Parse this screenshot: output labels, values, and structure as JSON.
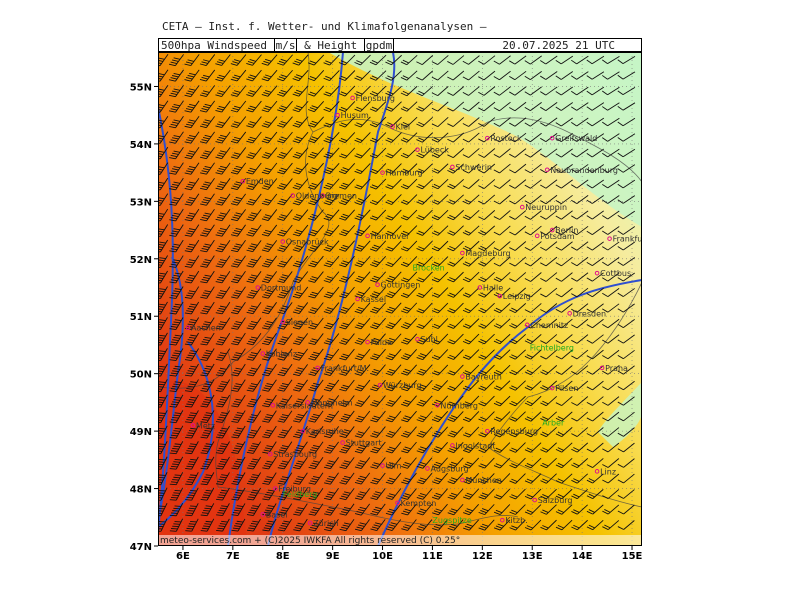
{
  "header": {
    "source": "CETA — Inst. f. Wetter- und Klimafolgenanalysen —",
    "parameter_prefix": "500hpa Windspeed",
    "unit_speed": "m/s",
    "connector": "& Height",
    "unit_height": "gpdm",
    "datetime": "20.07.2025 21 UTC"
  },
  "footer": {
    "copyright": "meteo-services.com + (C)2025 IWKFA All rights reserved (C) 0.25°"
  },
  "axes": {
    "lat_labels": [
      "55N",
      "54N",
      "53N",
      "52N",
      "51N",
      "50N",
      "49N",
      "48N",
      "47N"
    ],
    "lon_labels": [
      "6E",
      "7E",
      "8E",
      "9E",
      "10E",
      "11E",
      "12E",
      "13E",
      "14E",
      "15E"
    ],
    "lat_range": [
      47,
      55.6
    ],
    "lon_range": [
      5.5,
      15.2
    ]
  },
  "colors": {
    "strong": "#e03a12",
    "orange": "#f07a10",
    "gold": "#f5b400",
    "yellow": "#f8d84a",
    "pale": "#f6ec9e",
    "green": "#c6f5c6",
    "contour": "#2f4fd0",
    "city_dot": "#e0108a"
  },
  "cities": [
    {
      "name": "Flensburg",
      "lat": 54.8,
      "lon": 9.4
    },
    {
      "name": "Husum",
      "lat": 54.5,
      "lon": 9.1
    },
    {
      "name": "Kiel",
      "lat": 54.3,
      "lon": 10.2
    },
    {
      "name": "Rostock",
      "lat": 54.1,
      "lon": 12.1
    },
    {
      "name": "Greifswald",
      "lat": 54.1,
      "lon": 13.4
    },
    {
      "name": "Lübeck",
      "lat": 53.9,
      "lon": 10.7
    },
    {
      "name": "Schwerin",
      "lat": 53.6,
      "lon": 11.4
    },
    {
      "name": "Hamburg",
      "lat": 53.5,
      "lon": 10.0
    },
    {
      "name": "Neubrandenburg",
      "lat": 53.55,
      "lon": 13.3
    },
    {
      "name": "Emden",
      "lat": 53.35,
      "lon": 7.2
    },
    {
      "name": "Bremen",
      "lat": 53.1,
      "lon": 8.8
    },
    {
      "name": "Oldenburg",
      "lat": 53.1,
      "lon": 8.2
    },
    {
      "name": "Neuruppin",
      "lat": 52.9,
      "lon": 12.8
    },
    {
      "name": "Berlin",
      "lat": 52.5,
      "lon": 13.4
    },
    {
      "name": "Potsdam",
      "lat": 52.4,
      "lon": 13.1
    },
    {
      "name": "Frankfurt/O.",
      "lat": 52.35,
      "lon": 14.55
    },
    {
      "name": "Hannover",
      "lat": 52.4,
      "lon": 9.7
    },
    {
      "name": "Osnabrück",
      "lat": 52.3,
      "lon": 8.0
    },
    {
      "name": "Magdeburg",
      "lat": 52.1,
      "lon": 11.6
    },
    {
      "name": "Cottbus",
      "lat": 51.75,
      "lon": 14.3
    },
    {
      "name": "Dortmund",
      "lat": 51.5,
      "lon": 7.5
    },
    {
      "name": "Göttingen",
      "lat": 51.55,
      "lon": 9.9
    },
    {
      "name": "Halle",
      "lat": 51.5,
      "lon": 11.95
    },
    {
      "name": "Leipzig",
      "lat": 51.35,
      "lon": 12.35
    },
    {
      "name": "Kassel",
      "lat": 51.3,
      "lon": 9.5
    },
    {
      "name": "Dresden",
      "lat": 51.05,
      "lon": 13.75
    },
    {
      "name": "Chemnitz",
      "lat": 50.85,
      "lon": 12.9
    },
    {
      "name": "Aachen",
      "lat": 50.8,
      "lon": 6.1
    },
    {
      "name": "Siegen",
      "lat": 50.9,
      "lon": 8.0
    },
    {
      "name": "Fulda",
      "lat": 50.55,
      "lon": 9.7
    },
    {
      "name": "Suhl",
      "lat": 50.6,
      "lon": 10.7
    },
    {
      "name": "Frankfurt/M.",
      "lat": 50.1,
      "lon": 8.7
    },
    {
      "name": "Koblenz",
      "lat": 50.35,
      "lon": 7.6
    },
    {
      "name": "Praha",
      "lat": 50.1,
      "lon": 14.4
    },
    {
      "name": "Bayreuth",
      "lat": 49.95,
      "lon": 11.6
    },
    {
      "name": "Würzburg",
      "lat": 49.8,
      "lon": 9.95
    },
    {
      "name": "Pilsen",
      "lat": 49.75,
      "lon": 13.4
    },
    {
      "name": "Nürnberg",
      "lat": 49.45,
      "lon": 11.1
    },
    {
      "name": "Kaiserslautern",
      "lat": 49.45,
      "lon": 7.8
    },
    {
      "name": "Mannheim",
      "lat": 49.5,
      "lon": 8.5
    },
    {
      "name": "Metz",
      "lat": 49.1,
      "lon": 6.2
    },
    {
      "name": "Regensburg",
      "lat": 49.0,
      "lon": 12.1
    },
    {
      "name": "Karlsruhe",
      "lat": 49.0,
      "lon": 8.4
    },
    {
      "name": "Ingolstadt",
      "lat": 48.75,
      "lon": 11.4
    },
    {
      "name": "Stuttgart",
      "lat": 48.8,
      "lon": 9.2
    },
    {
      "name": "Augsburg",
      "lat": 48.35,
      "lon": 10.9
    },
    {
      "name": "Ulm",
      "lat": 48.4,
      "lon": 10.0
    },
    {
      "name": "Linz",
      "lat": 48.3,
      "lon": 14.3
    },
    {
      "name": "München",
      "lat": 48.15,
      "lon": 11.6
    },
    {
      "name": "Strasbourg",
      "lat": 48.6,
      "lon": 7.75
    },
    {
      "name": "Freiburg",
      "lat": 48.0,
      "lon": 7.85
    },
    {
      "name": "Kempten",
      "lat": 47.75,
      "lon": 10.3
    },
    {
      "name": "Salzburg",
      "lat": 47.8,
      "lon": 13.05
    },
    {
      "name": "Zürich",
      "lat": 47.4,
      "lon": 8.55
    },
    {
      "name": "Kitzb.",
      "lat": 47.45,
      "lon": 12.4
    },
    {
      "name": "Basel",
      "lat": 47.55,
      "lon": 7.6
    }
  ],
  "peaks": [
    {
      "name": "Brocken",
      "lat": 51.8,
      "lon": 10.6
    },
    {
      "name": "Fichtelberg",
      "lat": 50.4,
      "lon": 12.95
    },
    {
      "name": "Arber",
      "lat": 49.1,
      "lon": 13.2
    },
    {
      "name": "Zugspitze",
      "lat": 47.4,
      "lon": 11.0
    },
    {
      "name": "Feldberg",
      "lat": 47.85,
      "lon": 8.0
    }
  ]
}
